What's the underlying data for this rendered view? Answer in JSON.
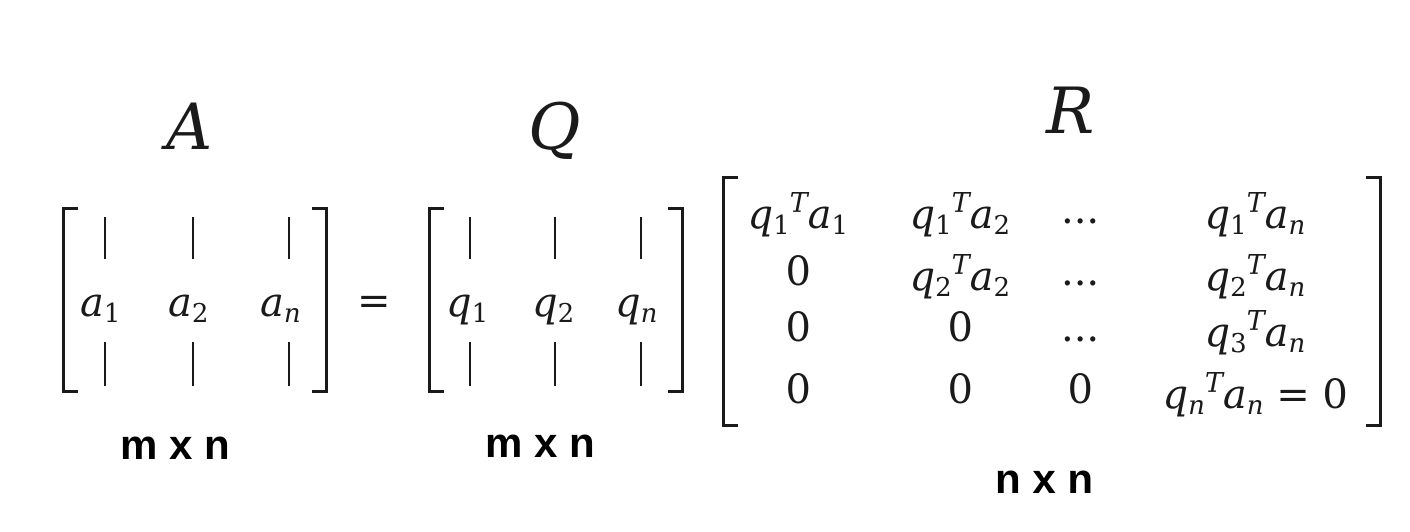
{
  "matrix_A": {
    "label": "A",
    "columns": [
      {
        "sym": "a",
        "sub": "1"
      },
      {
        "sym": "a",
        "sub": "2"
      },
      {
        "sym": "a",
        "sub": "n"
      }
    ],
    "dims": "m x n"
  },
  "equals": "=",
  "matrix_Q": {
    "label": "Q",
    "columns": [
      {
        "sym": "q",
        "sub": "1"
      },
      {
        "sym": "q",
        "sub": "2"
      },
      {
        "sym": "q",
        "sub": "n"
      }
    ],
    "dims": "m x n"
  },
  "matrix_R": {
    "label": "R",
    "dims": "n x n",
    "rows": [
      [
        "q1Ta1",
        "q1Ta2",
        "...",
        "q1Tan"
      ],
      [
        "0",
        "q2Ta2",
        "...",
        "q2Tan"
      ],
      [
        "0",
        "0",
        "...",
        "q3Tan"
      ],
      [
        "0",
        "0",
        "0",
        "qnTan = 0"
      ]
    ]
  }
}
